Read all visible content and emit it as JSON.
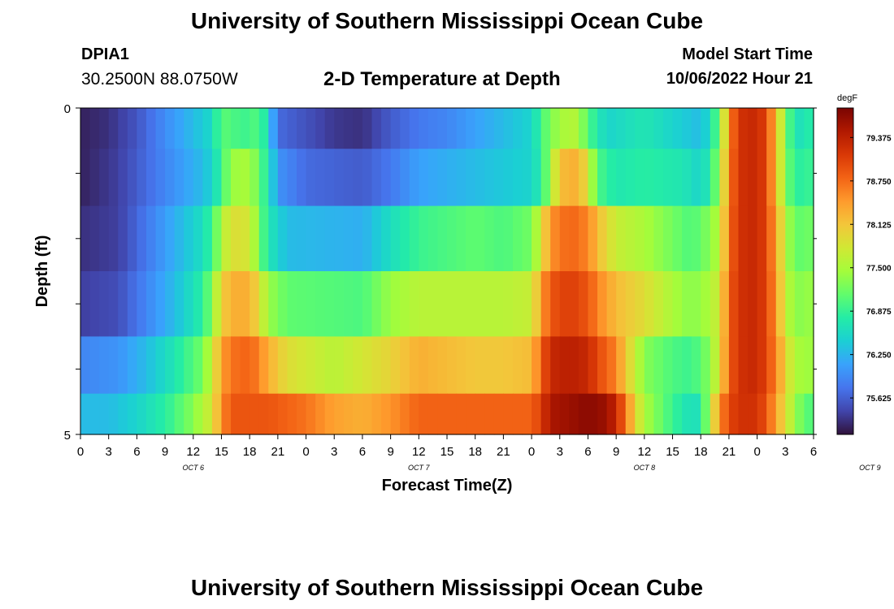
{
  "header": {
    "title": "University of Southern Mississippi Ocean Cube",
    "station_id": "DPIA1",
    "coordinates": "30.2500N  88.0750W",
    "subtitle": "2-D Temperature at Depth",
    "model_start_label": "Model Start Time",
    "model_start_value": "10/06/2022 Hour 21"
  },
  "footer": {
    "title": "University of Southern Mississippi Ocean Cube"
  },
  "chart_data": {
    "type": "heatmap",
    "title": "2-D Temperature at Depth",
    "xlabel": "Forecast Time(Z)",
    "ylabel": "Depth (ft)",
    "x_tick_labels": [
      "0",
      "3",
      "6",
      "9",
      "12",
      "15",
      "18",
      "21",
      "0",
      "3",
      "6",
      "9",
      "12",
      "15",
      "18",
      "21",
      "0",
      "3",
      "6",
      "9",
      "12",
      "15",
      "18",
      "21",
      "0",
      "3",
      "6"
    ],
    "day_labels": [
      "OCT 6",
      "OCT 7",
      "OCT 8",
      "OCT 9"
    ],
    "y_tick_labels": [
      "0",
      "5"
    ],
    "depth_range_ft": [
      0,
      5
    ],
    "hours_range": [
      0,
      78
    ],
    "colorbar": {
      "unit": "degF",
      "tick_labels": [
        "79.375",
        "78.750",
        "78.125",
        "77.500",
        "76.875",
        "76.250",
        "75.625"
      ],
      "range": [
        75.1,
        79.8
      ],
      "colors": [
        "#30123b",
        "#4145ab",
        "#4675ed",
        "#39a2fc",
        "#1bcfd4",
        "#24eca6",
        "#61fc6c",
        "#a4fc3b",
        "#d1e834",
        "#f3c63a",
        "#fe9b2d",
        "#f36315",
        "#d93806",
        "#b11901",
        "#7a0402"
      ]
    },
    "depth_layers": [
      {
        "depth_ft": 0.25,
        "anchors": [
          [
            0,
            75.2
          ],
          [
            3,
            75.3
          ],
          [
            6,
            75.55
          ],
          [
            9,
            75.95
          ],
          [
            12,
            76.3
          ],
          [
            14,
            76.55
          ],
          [
            15,
            77.1
          ],
          [
            16,
            77.0
          ],
          [
            18,
            76.9
          ],
          [
            19,
            77.1
          ],
          [
            20,
            76.5
          ],
          [
            21,
            75.7
          ],
          [
            27,
            75.35
          ],
          [
            30,
            75.3
          ],
          [
            33,
            75.6
          ],
          [
            36,
            75.8
          ],
          [
            39,
            75.9
          ],
          [
            42,
            76.1
          ],
          [
            45,
            76.3
          ],
          [
            48,
            76.5
          ],
          [
            49,
            76.9
          ],
          [
            50,
            77.3
          ],
          [
            51,
            77.4
          ],
          [
            52,
            77.6
          ],
          [
            53,
            77.5
          ],
          [
            54,
            77.0
          ],
          [
            56,
            76.5
          ],
          [
            60,
            76.7
          ],
          [
            63,
            76.5
          ],
          [
            66,
            76.3
          ],
          [
            67,
            76.6
          ],
          [
            68,
            77.2
          ],
          [
            69,
            78.5
          ],
          [
            70,
            79.2
          ],
          [
            72,
            79.3
          ],
          [
            73,
            79.0
          ],
          [
            74,
            78.2
          ],
          [
            75,
            77.3
          ],
          [
            76,
            76.6
          ],
          [
            78,
            76.8
          ]
        ]
      },
      {
        "depth_ft": 1.0,
        "anchors": [
          [
            0,
            75.2
          ],
          [
            4,
            75.4
          ],
          [
            7,
            75.7
          ],
          [
            10,
            76.0
          ],
          [
            13,
            76.3
          ],
          [
            14,
            76.5
          ],
          [
            15,
            76.9
          ],
          [
            16,
            77.4
          ],
          [
            18,
            77.5
          ],
          [
            19,
            77.1
          ],
          [
            20,
            76.7
          ],
          [
            21,
            76.0
          ],
          [
            24,
            75.7
          ],
          [
            30,
            75.6
          ],
          [
            33,
            75.8
          ],
          [
            36,
            76.1
          ],
          [
            39,
            76.2
          ],
          [
            42,
            76.3
          ],
          [
            45,
            76.4
          ],
          [
            48,
            76.5
          ],
          [
            49,
            76.8
          ],
          [
            50,
            77.4
          ],
          [
            51,
            78.2
          ],
          [
            53,
            78.3
          ],
          [
            54,
            77.8
          ],
          [
            55,
            77.0
          ],
          [
            57,
            76.7
          ],
          [
            60,
            76.8
          ],
          [
            64,
            76.7
          ],
          [
            66,
            76.5
          ],
          [
            67,
            76.8
          ],
          [
            68,
            77.4
          ],
          [
            69,
            78.6
          ],
          [
            70,
            79.2
          ],
          [
            72,
            79.3
          ],
          [
            73,
            79.0
          ],
          [
            74,
            78.2
          ],
          [
            75,
            77.3
          ],
          [
            76,
            76.8
          ],
          [
            78,
            76.9
          ]
        ]
      },
      {
        "depth_ft": 2.0,
        "anchors": [
          [
            0,
            75.3
          ],
          [
            4,
            75.4
          ],
          [
            7,
            75.8
          ],
          [
            10,
            76.2
          ],
          [
            13,
            76.6
          ],
          [
            14,
            76.9
          ],
          [
            15,
            77.5
          ],
          [
            16,
            77.9
          ],
          [
            18,
            77.8
          ],
          [
            19,
            77.2
          ],
          [
            20,
            76.7
          ],
          [
            22,
            76.3
          ],
          [
            30,
            76.2
          ],
          [
            33,
            76.6
          ],
          [
            36,
            76.9
          ],
          [
            42,
            77.1
          ],
          [
            45,
            77.0
          ],
          [
            48,
            77.2
          ],
          [
            49,
            77.8
          ],
          [
            50,
            78.5
          ],
          [
            52,
            78.8
          ],
          [
            54,
            78.6
          ],
          [
            55,
            78.2
          ],
          [
            57,
            77.7
          ],
          [
            60,
            77.5
          ],
          [
            63,
            77.2
          ],
          [
            65,
            77.0
          ],
          [
            67,
            77.3
          ],
          [
            68,
            77.6
          ],
          [
            69,
            78.7
          ],
          [
            70,
            79.2
          ],
          [
            72,
            79.3
          ],
          [
            73,
            79.0
          ],
          [
            74,
            78.4
          ],
          [
            75,
            77.6
          ],
          [
            76,
            77.1
          ],
          [
            78,
            77.2
          ]
        ]
      },
      {
        "depth_ft": 3.0,
        "anchors": [
          [
            0,
            75.4
          ],
          [
            4,
            75.5
          ],
          [
            7,
            75.9
          ],
          [
            10,
            76.3
          ],
          [
            13,
            76.8
          ],
          [
            14,
            77.3
          ],
          [
            15,
            78.0
          ],
          [
            16,
            78.3
          ],
          [
            18,
            78.3
          ],
          [
            19,
            77.9
          ],
          [
            20,
            77.4
          ],
          [
            22,
            77.1
          ],
          [
            30,
            77.0
          ],
          [
            33,
            77.4
          ],
          [
            36,
            77.6
          ],
          [
            42,
            77.6
          ],
          [
            45,
            77.6
          ],
          [
            48,
            77.7
          ],
          [
            49,
            78.4
          ],
          [
            50,
            78.9
          ],
          [
            52,
            79.1
          ],
          [
            54,
            78.9
          ],
          [
            55,
            78.6
          ],
          [
            57,
            78.2
          ],
          [
            60,
            77.9
          ],
          [
            63,
            77.5
          ],
          [
            65,
            77.3
          ],
          [
            67,
            77.5
          ],
          [
            68,
            77.8
          ],
          [
            69,
            78.8
          ],
          [
            70,
            79.2
          ],
          [
            72,
            79.3
          ],
          [
            73,
            79.0
          ],
          [
            74,
            78.5
          ],
          [
            75,
            77.7
          ],
          [
            76,
            77.3
          ],
          [
            78,
            77.4
          ]
        ]
      },
      {
        "depth_ft": 4.0,
        "anchors": [
          [
            0,
            75.9
          ],
          [
            4,
            76.0
          ],
          [
            7,
            76.3
          ],
          [
            10,
            76.7
          ],
          [
            13,
            77.2
          ],
          [
            14,
            77.7
          ],
          [
            15,
            78.4
          ],
          [
            16,
            78.7
          ],
          [
            18,
            78.8
          ],
          [
            19,
            78.6
          ],
          [
            20,
            78.3
          ],
          [
            22,
            77.9
          ],
          [
            27,
            77.6
          ],
          [
            30,
            77.8
          ],
          [
            33,
            78.0
          ],
          [
            36,
            78.3
          ],
          [
            42,
            78.1
          ],
          [
            45,
            78.1
          ],
          [
            48,
            78.2
          ],
          [
            49,
            78.8
          ],
          [
            50,
            79.3
          ],
          [
            52,
            79.4
          ],
          [
            54,
            79.3
          ],
          [
            55,
            79.0
          ],
          [
            57,
            78.6
          ],
          [
            58,
            78.1
          ],
          [
            59,
            77.7
          ],
          [
            60,
            77.3
          ],
          [
            63,
            77.0
          ],
          [
            65,
            76.9
          ],
          [
            67,
            77.3
          ],
          [
            68,
            77.9
          ],
          [
            69,
            78.8
          ],
          [
            70,
            79.2
          ],
          [
            72,
            79.3
          ],
          [
            73,
            79.0
          ],
          [
            74,
            78.6
          ],
          [
            75,
            78.0
          ],
          [
            76,
            77.5
          ],
          [
            78,
            77.4
          ]
        ]
      },
      {
        "depth_ft": 4.75,
        "anchors": [
          [
            0,
            76.3
          ],
          [
            3,
            76.3
          ],
          [
            6,
            76.5
          ],
          [
            9,
            76.8
          ],
          [
            12,
            77.3
          ],
          [
            14,
            77.8
          ],
          [
            15,
            78.5
          ],
          [
            16,
            78.9
          ],
          [
            20,
            78.9
          ],
          [
            24,
            78.7
          ],
          [
            27,
            78.4
          ],
          [
            30,
            78.3
          ],
          [
            33,
            78.5
          ],
          [
            36,
            78.8
          ],
          [
            42,
            78.8
          ],
          [
            45,
            78.8
          ],
          [
            48,
            78.8
          ],
          [
            49,
            79.1
          ],
          [
            50,
            79.5
          ],
          [
            52,
            79.6
          ],
          [
            54,
            79.7
          ],
          [
            56,
            79.6
          ],
          [
            57,
            79.3
          ],
          [
            58,
            78.7
          ],
          [
            59,
            78.0
          ],
          [
            60,
            77.5
          ],
          [
            63,
            76.9
          ],
          [
            65,
            76.6
          ],
          [
            66,
            76.7
          ],
          [
            67,
            77.6
          ],
          [
            68,
            78.5
          ],
          [
            69,
            79.0
          ],
          [
            70,
            79.2
          ],
          [
            72,
            79.2
          ],
          [
            73,
            78.9
          ],
          [
            74,
            78.4
          ],
          [
            75,
            77.9
          ],
          [
            76,
            77.4
          ],
          [
            77,
            77.1
          ],
          [
            78,
            77.0
          ]
        ]
      }
    ]
  }
}
